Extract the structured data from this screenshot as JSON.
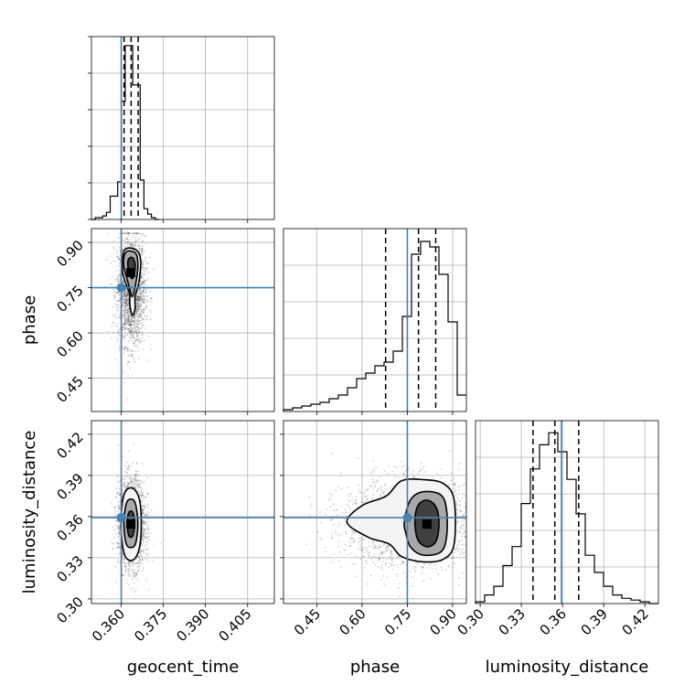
{
  "chart_data": {
    "type": "corner",
    "parameters": [
      "geocent_time",
      "phase",
      "luminosity_distance"
    ],
    "axis_labels": {
      "geocent_time": "geocent_time",
      "phase": "phase",
      "luminosity_distance": "luminosity_distance"
    },
    "ranges": {
      "geocent_time": [
        0.3495,
        0.4145
      ],
      "phase": [
        0.3396,
        0.9456
      ],
      "luminosity_distance": [
        0.2966,
        0.4299
      ]
    },
    "ticks": {
      "geocent_time": [
        "0.360",
        "0.375",
        "0.390",
        "0.405"
      ],
      "phase": [
        "0.45",
        "0.60",
        "0.75",
        "0.90"
      ],
      "luminosity_distance": [
        "0.30",
        "0.33",
        "0.36",
        "0.39",
        "0.42"
      ]
    },
    "truths": {
      "geocent_time": 0.3601,
      "phase": 0.75,
      "luminosity_distance": 0.3592
    },
    "quantiles": {
      "geocent_time": [
        0.3611,
        0.3636,
        0.3661
      ],
      "phase": [
        0.678,
        0.787,
        0.844
      ],
      "luminosity_distance": [
        0.3385,
        0.3544,
        0.3718
      ]
    },
    "histograms": {
      "geocent_time": {
        "edges": [
          0.3495,
          0.35083,
          0.35217,
          0.3535,
          0.35483,
          0.35617,
          0.3575,
          0.35883,
          0.36017,
          0.3615,
          0.36283,
          0.36417,
          0.3655,
          0.36683,
          0.36817,
          0.3695,
          0.37083,
          0.37217,
          0.3735
        ],
        "counts": [
          0,
          1,
          1,
          2,
          4,
          13,
          13,
          21,
          66,
          97,
          97,
          75,
          75,
          22,
          6,
          3,
          1,
          0
        ],
        "ylim": [
          0,
          102
        ]
      },
      "phase": {
        "edges": [
          0.3396,
          0.3699,
          0.4002,
          0.4305,
          0.4608,
          0.4911,
          0.5214,
          0.5517,
          0.582,
          0.6123,
          0.6426,
          0.6729,
          0.7032,
          0.7335,
          0.7638,
          0.7941,
          0.8244,
          0.8547,
          0.885,
          0.9153,
          0.9456
        ],
        "counts": [
          1,
          2,
          3,
          4,
          5,
          7,
          9,
          13,
          18,
          21,
          25,
          27,
          33,
          52,
          86,
          93,
          90,
          75,
          49,
          9
        ],
        "ylim": [
          0,
          100
        ]
      },
      "luminosity_distance": {
        "edges": [
          0.2966,
          0.30327,
          0.30993,
          0.3166,
          0.32327,
          0.32993,
          0.3366,
          0.34327,
          0.34993,
          0.3566,
          0.36327,
          0.36993,
          0.3766,
          0.38327,
          0.38993,
          0.3966,
          0.40327,
          0.40993,
          0.4166,
          0.42327,
          0.42993
        ],
        "counts": [
          1,
          5,
          10,
          22,
          33,
          58,
          78,
          92,
          99,
          88,
          72,
          52,
          28,
          18,
          10,
          5,
          3,
          2,
          1,
          0
        ],
        "ylim": [
          0,
          106
        ]
      }
    },
    "density_contours": {
      "geocent_time|phase": {
        "mode": [
          0.3635,
          0.8
        ],
        "levels": [
          [
            [
              0.3605,
              0.84
            ],
            [
              0.361,
              0.87
            ],
            [
              0.362,
              0.88
            ],
            [
              0.364,
              0.88
            ],
            [
              0.366,
              0.87
            ],
            [
              0.367,
              0.84
            ],
            [
              0.3668,
              0.8
            ],
            [
              0.3662,
              0.76
            ],
            [
              0.365,
              0.72
            ],
            [
              0.365,
              0.68
            ],
            [
              0.364,
              0.66
            ],
            [
              0.3632,
              0.69
            ],
            [
              0.363,
              0.73
            ],
            [
              0.3615,
              0.77
            ],
            [
              0.3606,
              0.8
            ]
          ],
          [
            [
              0.361,
              0.85
            ],
            [
              0.362,
              0.87
            ],
            [
              0.364,
              0.87
            ],
            [
              0.3655,
              0.86
            ],
            [
              0.366,
              0.82
            ],
            [
              0.3652,
              0.76
            ],
            [
              0.364,
              0.72
            ],
            [
              0.363,
              0.75
            ],
            [
              0.3618,
              0.79
            ],
            [
              0.361,
              0.82
            ]
          ],
          [
            [
              0.3625,
              0.84
            ],
            [
              0.364,
              0.85
            ],
            [
              0.365,
              0.83
            ],
            [
              0.3648,
              0.8
            ],
            [
              0.364,
              0.78
            ],
            [
              0.3628,
              0.8
            ]
          ]
        ],
        "scatter": {
          "center": [
            0.3637,
            0.74
          ],
          "spread": [
            0.0025,
            0.09
          ],
          "n": 2000
        }
      },
      "geocent_time|luminosity_distance": {
        "mode": [
          0.3635,
          0.3545
        ],
        "levels": [
          [
            [
              0.36,
              0.355
            ],
            [
              0.3605,
              0.37
            ],
            [
              0.3615,
              0.378
            ],
            [
              0.3635,
              0.381
            ],
            [
              0.3655,
              0.378
            ],
            [
              0.3668,
              0.37
            ],
            [
              0.3672,
              0.355
            ],
            [
              0.3668,
              0.34
            ],
            [
              0.3655,
              0.331
            ],
            [
              0.3635,
              0.328
            ],
            [
              0.3615,
              0.331
            ],
            [
              0.3605,
              0.34
            ]
          ],
          [
            [
              0.361,
              0.355
            ],
            [
              0.3615,
              0.366
            ],
            [
              0.3625,
              0.372
            ],
            [
              0.3645,
              0.372
            ],
            [
              0.3655,
              0.366
            ],
            [
              0.366,
              0.355
            ],
            [
              0.3655,
              0.343
            ],
            [
              0.3645,
              0.338
            ],
            [
              0.3625,
              0.338
            ],
            [
              0.3615,
              0.343
            ]
          ],
          [
            [
              0.3622,
              0.355
            ],
            [
              0.3628,
              0.363
            ],
            [
              0.3642,
              0.363
            ],
            [
              0.3648,
              0.355
            ],
            [
              0.3642,
              0.346
            ],
            [
              0.3628,
              0.346
            ]
          ]
        ],
        "scatter": {
          "center": [
            0.3637,
            0.355
          ],
          "spread": [
            0.0024,
            0.016
          ],
          "n": 2200
        }
      },
      "phase|luminosity_distance": {
        "mode": [
          0.815,
          0.3545
        ],
        "levels": [
          [
            [
              0.55,
              0.356
            ],
            [
              0.6,
              0.368
            ],
            [
              0.68,
              0.375
            ],
            [
              0.73,
              0.386
            ],
            [
              0.8,
              0.387
            ],
            [
              0.87,
              0.384
            ],
            [
              0.905,
              0.372
            ],
            [
              0.905,
              0.34
            ],
            [
              0.87,
              0.329
            ],
            [
              0.8,
              0.327
            ],
            [
              0.73,
              0.331
            ],
            [
              0.69,
              0.34
            ],
            [
              0.62,
              0.345
            ]
          ],
          [
            [
              0.74,
              0.356
            ],
            [
              0.76,
              0.372
            ],
            [
              0.8,
              0.378
            ],
            [
              0.86,
              0.376
            ],
            [
              0.88,
              0.365
            ],
            [
              0.88,
              0.345
            ],
            [
              0.86,
              0.334
            ],
            [
              0.8,
              0.332
            ],
            [
              0.76,
              0.338
            ],
            [
              0.745,
              0.348
            ]
          ],
          [
            [
              0.775,
              0.356
            ],
            [
              0.785,
              0.368
            ],
            [
              0.815,
              0.372
            ],
            [
              0.845,
              0.367
            ],
            [
              0.855,
              0.355
            ],
            [
              0.845,
              0.342
            ],
            [
              0.815,
              0.338
            ],
            [
              0.785,
              0.343
            ]
          ]
        ],
        "scatter": {
          "center": [
            0.76,
            0.355
          ],
          "spread": [
            0.11,
            0.016
          ],
          "n": 2200
        }
      }
    },
    "colors": {
      "truth": "#4682b4",
      "hist": "#000000",
      "quantile": "#000000",
      "grid": "#b0b0b0",
      "scatter": "#000000"
    },
    "grid": true
  }
}
